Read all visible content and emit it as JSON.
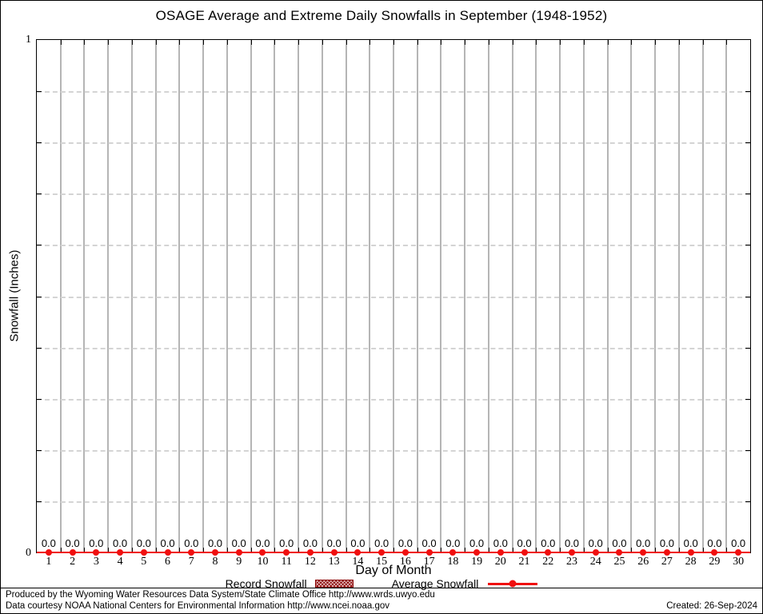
{
  "title": "OSAGE Average and Extreme Daily Snowfalls in September (1948-1952)",
  "y_axis": {
    "label": "Snowfall (Inches)",
    "top_tick": "1",
    "bottom_tick": "0"
  },
  "x_axis": {
    "label": "Day of Month"
  },
  "legend": {
    "record_label": "Record Snowfall",
    "average_label": "Average Snowfall"
  },
  "footer": {
    "line1": "Produced by the Wyoming Water Resources Data System/State Climate Office http://www.wrds.uwyo.edu",
    "line2": "Data courtesy NOAA National Centers for Environmental Information http://www.ncei.noaa.gov",
    "created": "Created: 26-Sep-2024"
  },
  "colors": {
    "average_line": "#f01010",
    "record_fill": "#8b0000",
    "grid_vertical": "#b5b5b5",
    "grid_horizontal": "#d4d4d4"
  },
  "chart_data": {
    "type": "line",
    "title": "OSAGE Average and Extreme Daily Snowfalls in September (1948-1952)",
    "xlabel": "Day of Month",
    "ylabel": "Snowfall (Inches)",
    "ylim": [
      0,
      1
    ],
    "y_grid_step": 0.1,
    "grid": true,
    "legend_position": "bottom",
    "categories": [
      1,
      2,
      3,
      4,
      5,
      6,
      7,
      8,
      9,
      10,
      11,
      12,
      13,
      14,
      15,
      16,
      17,
      18,
      19,
      20,
      21,
      22,
      23,
      24,
      25,
      26,
      27,
      28,
      29,
      30
    ],
    "series": [
      {
        "name": "Record Snowfall",
        "values": [
          0.0,
          0.0,
          0.0,
          0.0,
          0.0,
          0.0,
          0.0,
          0.0,
          0.0,
          0.0,
          0.0,
          0.0,
          0.0,
          0.0,
          0.0,
          0.0,
          0.0,
          0.0,
          0.0,
          0.0,
          0.0,
          0.0,
          0.0,
          0.0,
          0.0,
          0.0,
          0.0,
          0.0,
          0.0,
          0.0
        ]
      },
      {
        "name": "Average Snowfall",
        "values": [
          0.0,
          0.0,
          0.0,
          0.0,
          0.0,
          0.0,
          0.0,
          0.0,
          0.0,
          0.0,
          0.0,
          0.0,
          0.0,
          0.0,
          0.0,
          0.0,
          0.0,
          0.0,
          0.0,
          0.0,
          0.0,
          0.0,
          0.0,
          0.0,
          0.0,
          0.0,
          0.0,
          0.0,
          0.0,
          0.0
        ]
      }
    ]
  }
}
